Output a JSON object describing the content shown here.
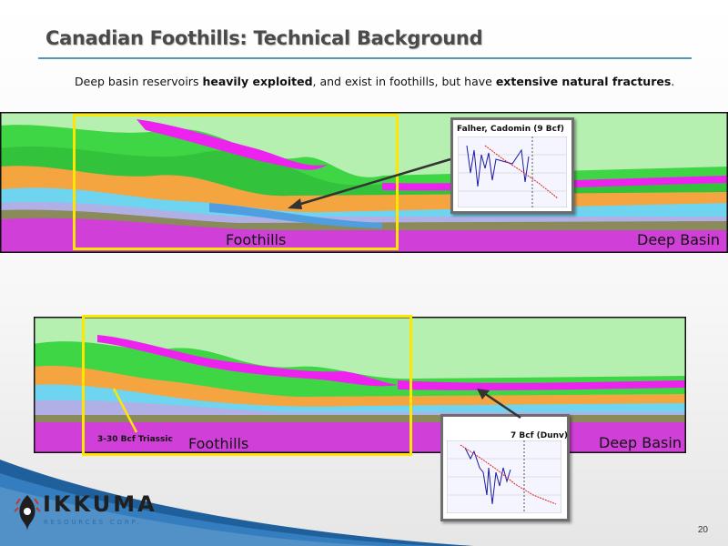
{
  "slide": {
    "title": "Canadian Foothills: Technical Background",
    "subtitle_parts": [
      "Deep basin reservoirs ",
      "heavily exploited",
      ", and exist in foothills, but have ",
      "extensive natural fractures",
      "."
    ],
    "page_number": "20"
  },
  "section_top": {
    "label_foothills": "Foothills",
    "label_deep_basin": "Deep Basin",
    "inset_title": "Falher, Cadomin (9 Bcf)"
  },
  "section_bottom": {
    "label_foothills": "Foothills",
    "label_deep_basin": "Deep Basin",
    "inset_title": "7 Bcf (Dunv)",
    "callout": "3-30 Bcf Triassic"
  },
  "logo": {
    "name": "IKKUMA",
    "tagline": "RESOURCES CORP."
  },
  "colors": {
    "accent_rule": "#4a9fb5",
    "highlight_box": "#ffe600",
    "layer_light_green": "#b5f0b0",
    "layer_green": "#3fd646",
    "layer_magenta": "#ee22ee",
    "layer_orange": "#f5a540",
    "layer_cyan": "#6fd4f0",
    "layer_lavender": "#b0b0e6",
    "layer_olive": "#8a8a5a",
    "layer_base_magenta": "#d040d8"
  }
}
